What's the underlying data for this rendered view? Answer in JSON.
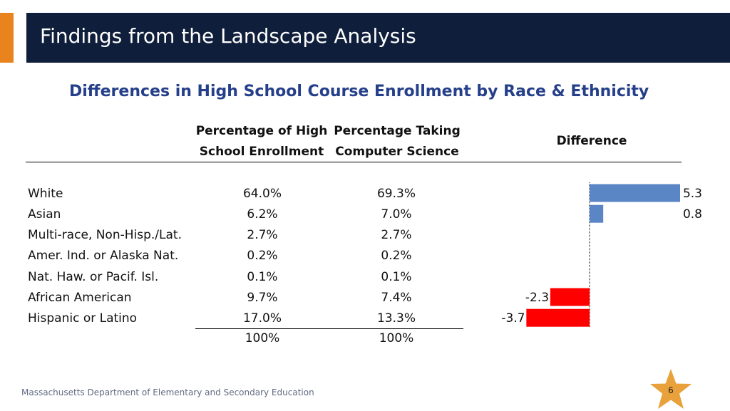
{
  "header": {
    "title": "Findings from the Landscape Analysis"
  },
  "subtitle": "Differences in High School Course Enrollment by Race & Ethnicity",
  "columns": {
    "enrollment_line1": "Percentage of High",
    "enrollment_line2": "School Enrollment",
    "cs_line1": "Percentage Taking",
    "cs_line2": "Computer Science",
    "difference": "Difference"
  },
  "rows": [
    {
      "label": "White",
      "enrollment": "64.0%",
      "cs": "69.3%"
    },
    {
      "label": "Asian",
      "enrollment": "6.2%",
      "cs": "7.0%"
    },
    {
      "label": "Multi-race, Non-Hisp./Lat.",
      "enrollment": "2.7%",
      "cs": "2.7%"
    },
    {
      "label": "Amer. Ind. or Alaska Nat.",
      "enrollment": "0.2%",
      "cs": "0.2%"
    },
    {
      "label": "Nat. Haw. or Pacif. Isl.",
      "enrollment": "0.1%",
      "cs": "0.1%"
    },
    {
      "label": "African American",
      "enrollment": "9.7%",
      "cs": "7.4%"
    },
    {
      "label": "Hispanic or Latino",
      "enrollment": "17.0%",
      "cs": "13.3%"
    }
  ],
  "totals": {
    "enrollment": "100%",
    "cs": "100%"
  },
  "chart_data": {
    "type": "bar",
    "orientation": "horizontal",
    "title": "Difference",
    "categories": [
      "White",
      "Asian",
      "Multi-race, Non-Hisp./Lat.",
      "Amer. Ind. or Alaska Nat.",
      "Nat. Haw. or Pacif. Isl.",
      "African American",
      "Hispanic or Latino"
    ],
    "values": [
      5.3,
      0.8,
      null,
      null,
      null,
      -2.3,
      -3.7
    ],
    "data_labels": [
      "5.3",
      "0.8",
      "",
      "",
      "",
      "-2.3",
      "-3.7"
    ],
    "colors": {
      "positive": "#5b86c6",
      "negative": "#ff0000"
    },
    "xlim": [
      -3.7,
      5.3
    ],
    "grid": false
  },
  "footer": {
    "org": "Massachusetts Department of Elementary and Secondary Education",
    "page": "6"
  },
  "colors": {
    "title_bar": "#0f1e3a",
    "accent": "#e8831d",
    "subtitle": "#253f8a",
    "star": "#e9a23b"
  }
}
